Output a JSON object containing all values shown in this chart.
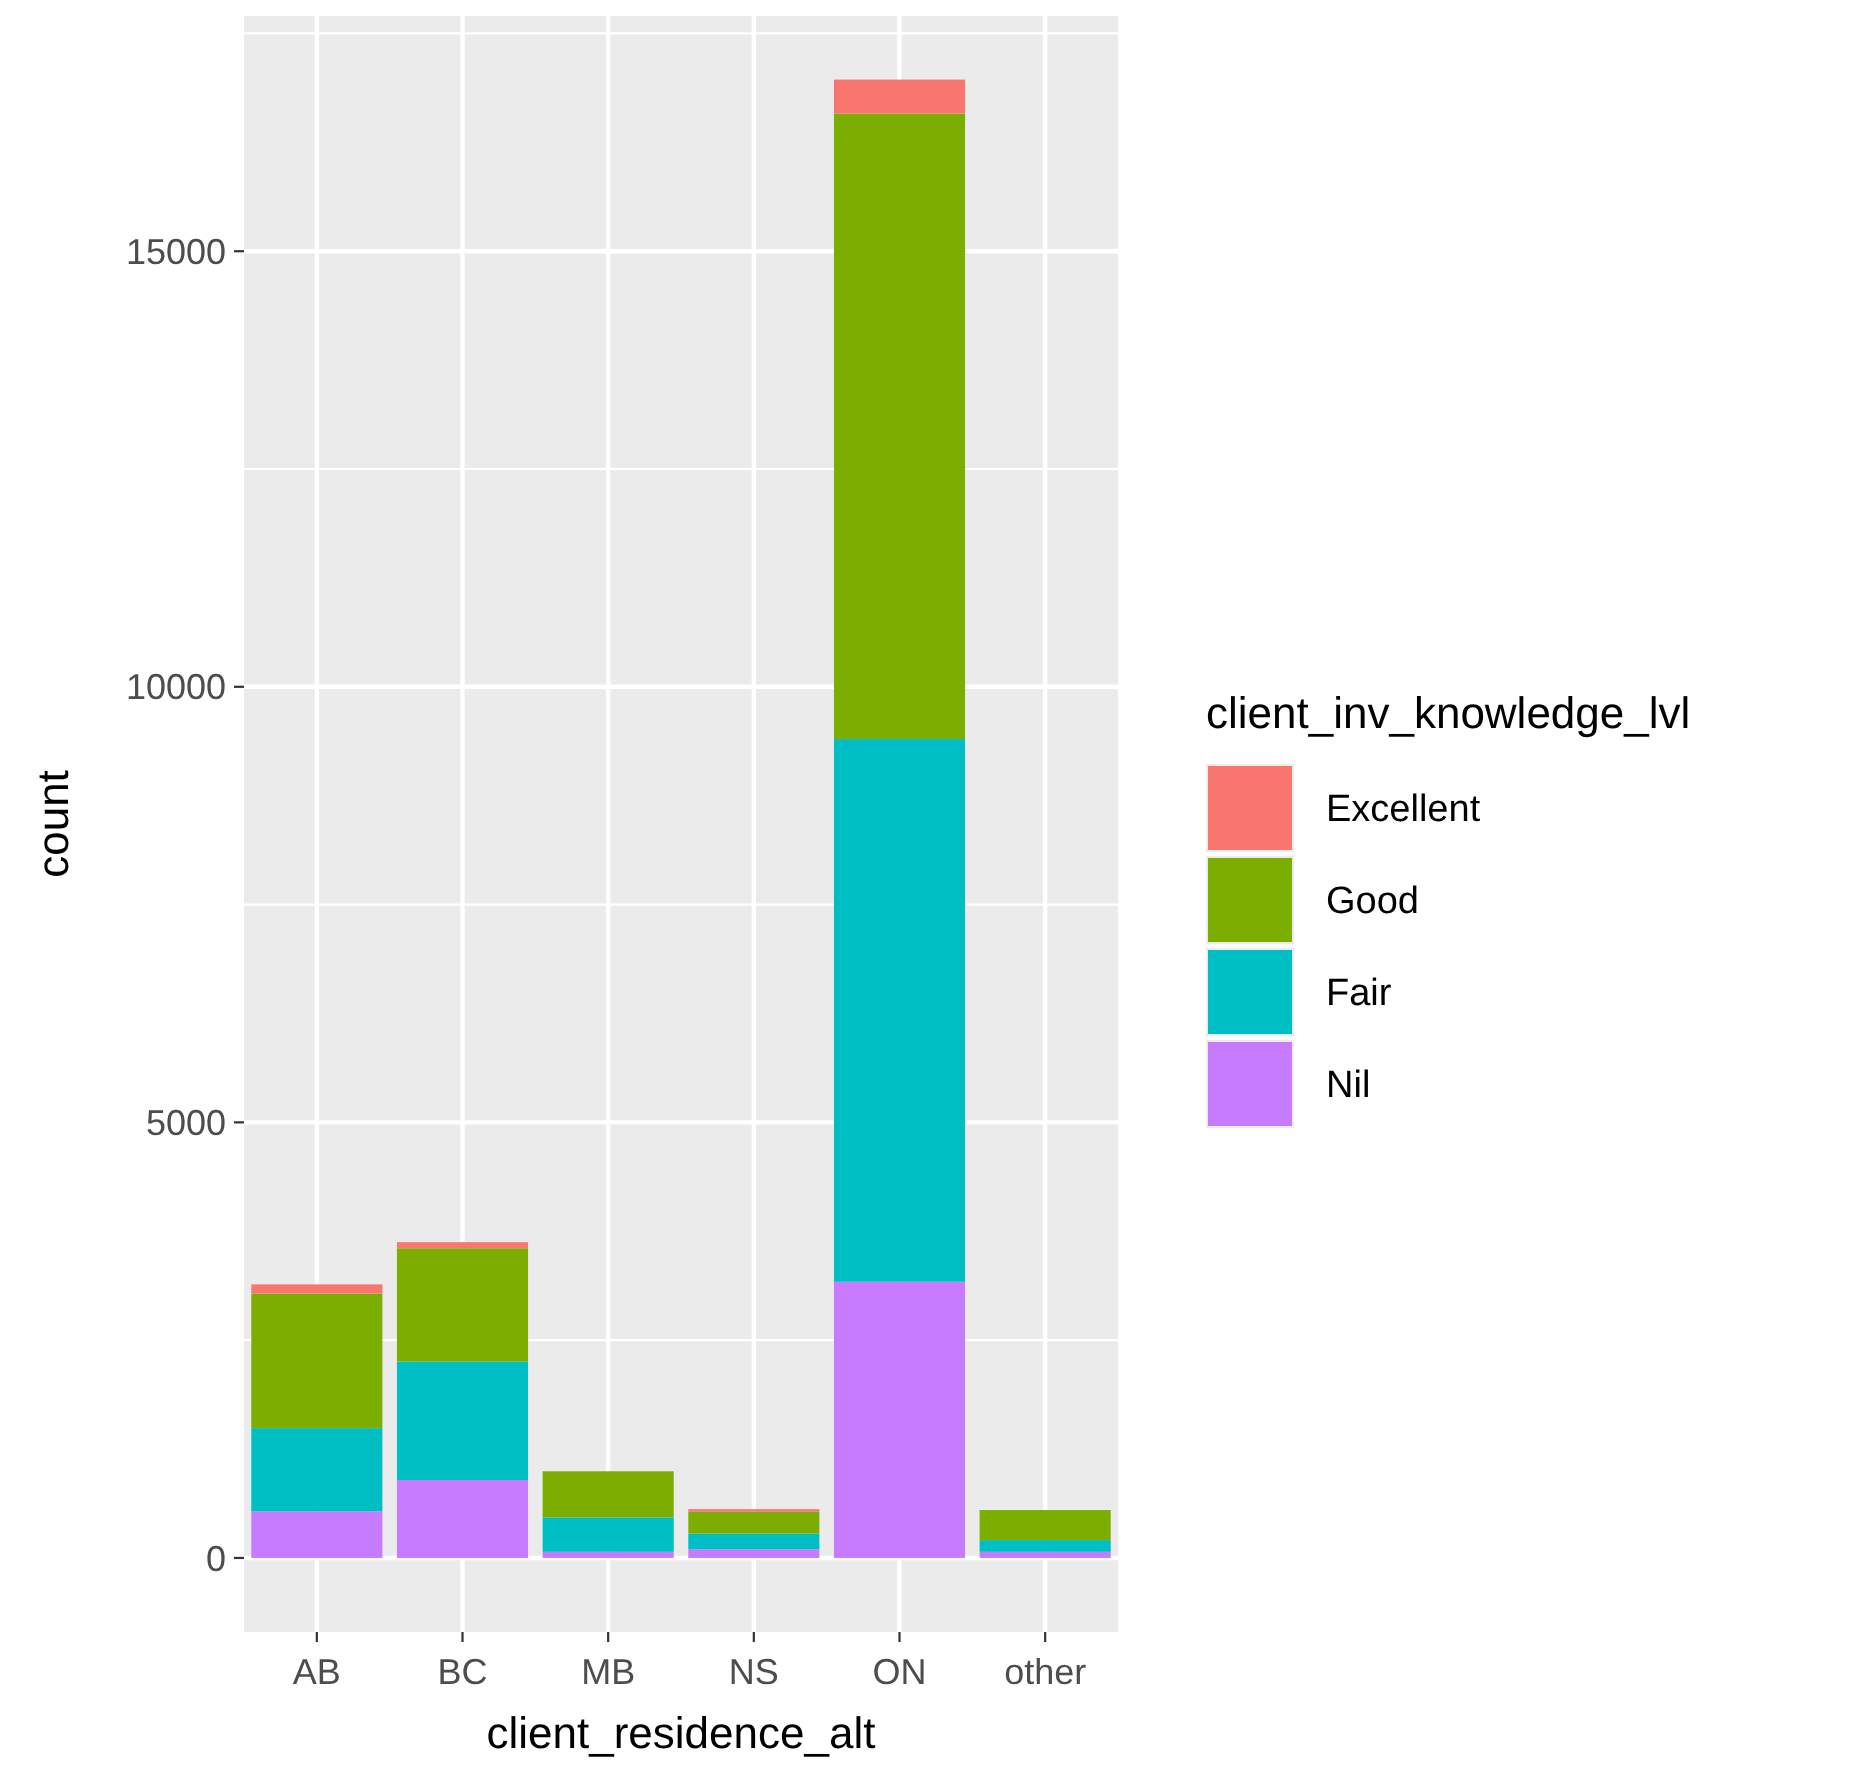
{
  "chart_data": {
    "type": "bar",
    "stacked": true,
    "xlabel": "client_residence_alt",
    "ylabel": "count",
    "legend_title": "client_inv_knowledge_lvl",
    "legend": "right",
    "grid": true,
    "categories": [
      "AB",
      "BC",
      "MB",
      "NS",
      "ON",
      "other"
    ],
    "ylim": [
      -850,
      17700
    ],
    "yticks": [
      0,
      5000,
      10000,
      15000
    ],
    "series": [
      {
        "name": "Nil",
        "color": "#c77cff",
        "values": [
          535,
          895,
          70,
          100,
          3170,
          70
        ]
      },
      {
        "name": "Fair",
        "color": "#00bfc4",
        "values": [
          955,
          1360,
          395,
          180,
          6230,
          135
        ]
      },
      {
        "name": "Good",
        "color": "#7cae00",
        "values": [
          1545,
          1300,
          530,
          250,
          7180,
          345
        ]
      },
      {
        "name": "Excellent",
        "color": "#f8766d",
        "values": [
          105,
          70,
          0,
          30,
          390,
          0
        ]
      }
    ]
  }
}
